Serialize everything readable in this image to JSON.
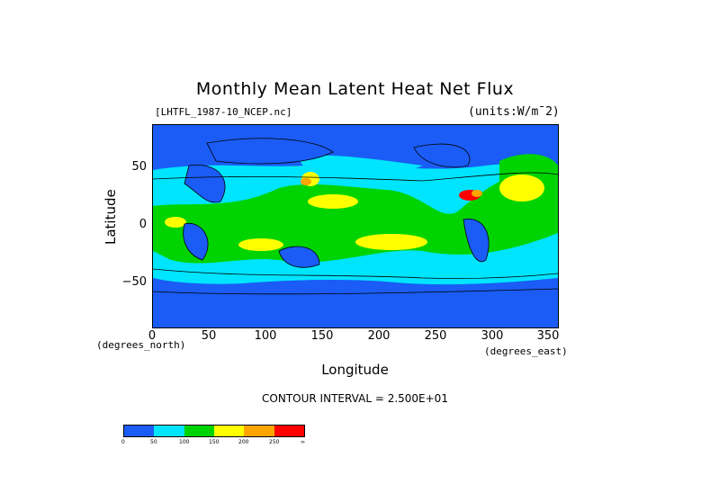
{
  "title": "Monthly Mean Latent Heat Net Flux",
  "file_label": "[LHTFL_1987-10_NCEP.nc]",
  "units_label": "(units:W/m¯2)",
  "axes": {
    "ylabel": "Latitude",
    "xlabel": "Longitude",
    "y_unit_label": "(degrees_north)",
    "x_unit_label": "(degrees_east)",
    "y_ticks": [
      "50",
      "0",
      "−50"
    ],
    "x_ticks": [
      "0",
      "50",
      "100",
      "150",
      "200",
      "250",
      "300",
      "350"
    ]
  },
  "contour_interval": "CONTOUR INTERVAL = 2.500E+01",
  "colorbar": {
    "colors": [
      "#1a5cf5",
      "#00e5ff",
      "#00d400",
      "#ffff00",
      "#ffa500",
      "#ff0000"
    ],
    "ticks": [
      "0",
      "50",
      "100",
      "150",
      "200",
      "250",
      "∞"
    ]
  },
  "chart_data": {
    "type": "heatmap",
    "title": "Monthly Mean Latent Heat Net Flux",
    "xlabel": "Longitude",
    "ylabel": "Latitude",
    "xlim": [
      0,
      360
    ],
    "ylim": [
      -90,
      90
    ],
    "levels": [
      0,
      50,
      100,
      150,
      200,
      250
    ],
    "contour_interval": 25,
    "units": "W/m^2"
  }
}
